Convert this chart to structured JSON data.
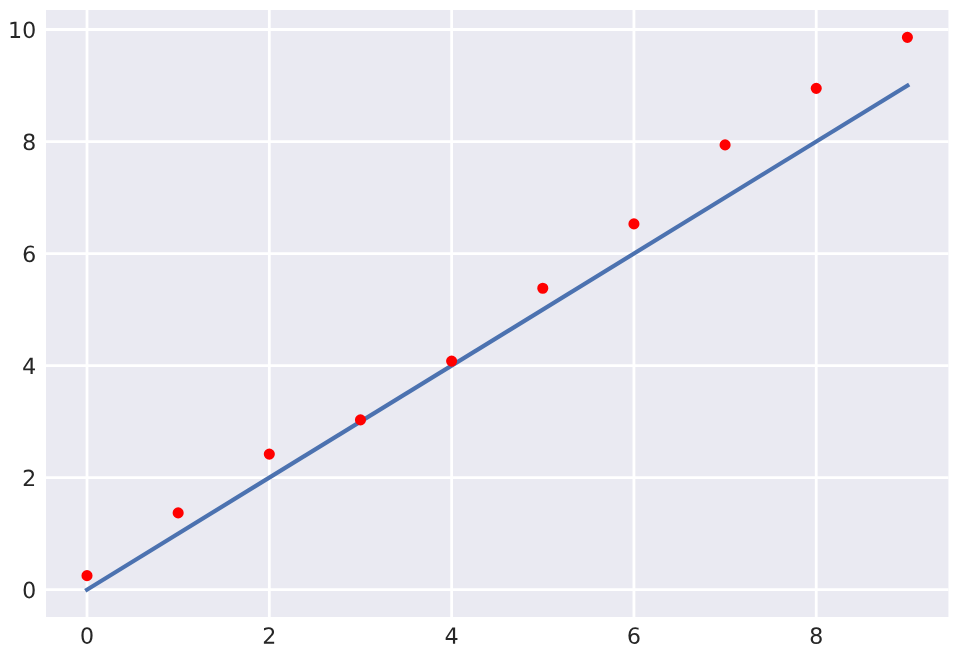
{
  "chart_data": {
    "type": "line",
    "x": [
      0,
      1,
      2,
      3,
      4,
      5,
      6,
      7,
      8,
      9
    ],
    "series": [
      {
        "color": "#4c72b0",
        "x": [
          0,
          9
        ],
        "values": [
          0,
          9
        ],
        "marker": "none"
      },
      {
        "type": "scatter",
        "color": "#ff0000",
        "values": [
          0.25,
          1.37,
          2.42,
          3.03,
          4.08,
          5.38,
          6.53,
          7.94,
          8.95,
          9.86
        ],
        "marker": "circle"
      }
    ],
    "xlim": [
      -0.45,
      9.45
    ],
    "ylim": [
      -0.49,
      10.35
    ],
    "xticks": [
      0,
      2,
      4,
      6,
      8
    ],
    "yticks": [
      0,
      2,
      4,
      6,
      8,
      10
    ],
    "grid": true
  }
}
